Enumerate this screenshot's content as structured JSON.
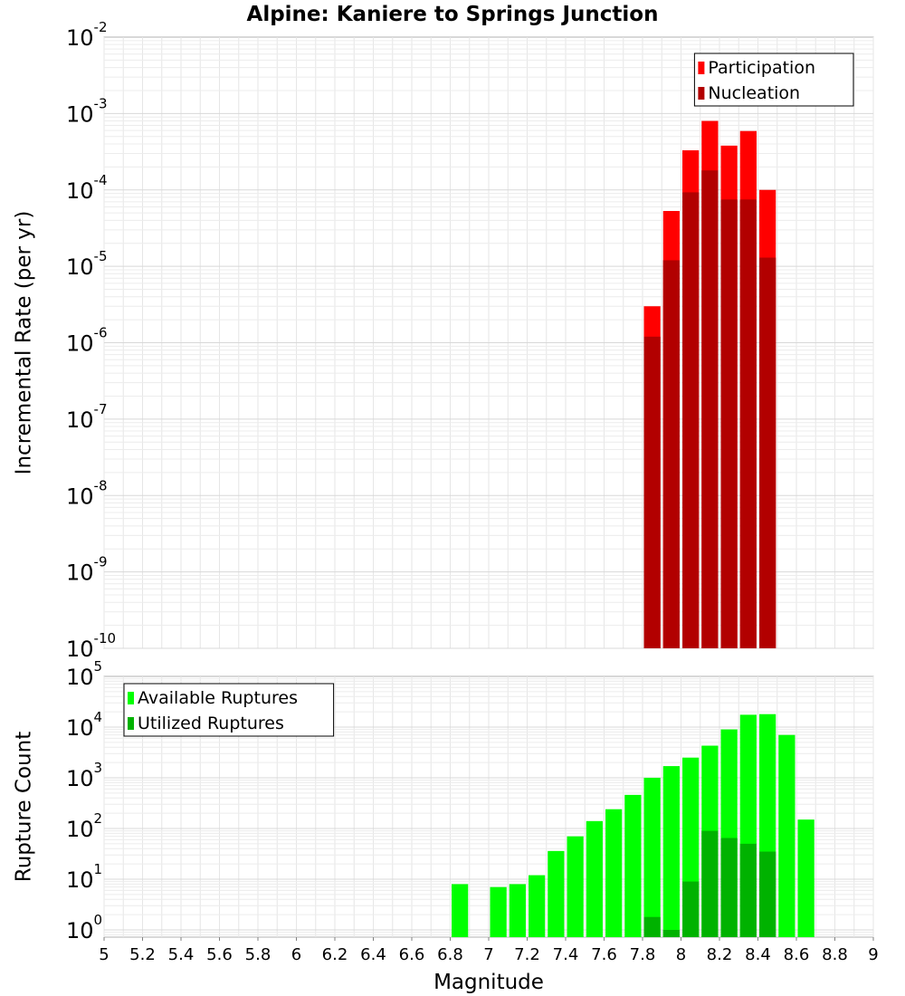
{
  "title": "Alpine: Kaniere to Springs Junction",
  "chart_data": [
    {
      "type": "bar",
      "ylabel": "Incremental Rate (per yr)",
      "yscale": "log",
      "ylim": [
        1e-10,
        0.01
      ],
      "xlim": [
        5,
        9
      ],
      "grid": true,
      "legend_position": "top-right",
      "bin_width": 0.1,
      "series": [
        {
          "name": "Participation",
          "color": "#ff0000",
          "x": [
            7.85,
            7.95,
            8.05,
            8.15,
            8.25,
            8.35,
            8.45
          ],
          "values": [
            3e-06,
            5.3e-05,
            0.00033,
            0.0008,
            0.00038,
            0.00059,
            0.0001
          ]
        },
        {
          "name": "Nucleation",
          "color": "#b20000",
          "x": [
            7.85,
            7.95,
            8.05,
            8.15,
            8.25,
            8.35,
            8.45
          ],
          "values": [
            1.2e-06,
            1.2e-05,
            9.3e-05,
            0.00018,
            7.5e-05,
            7.5e-05,
            1.3e-05
          ]
        }
      ]
    },
    {
      "type": "bar",
      "ylabel": "Rupture Count",
      "xlabel": "Magnitude",
      "yscale": "log",
      "ylim": [
        0.72,
        100000.0
      ],
      "xlim": [
        5,
        9
      ],
      "grid": true,
      "legend_position": "top-left",
      "bin_width": 0.1,
      "xticks": [
        "5",
        "5.2",
        "5.4",
        "5.6",
        "5.8",
        "6",
        "6.2",
        "6.4",
        "6.6",
        "6.8",
        "7",
        "7.2",
        "7.4",
        "7.6",
        "7.8",
        "8",
        "8.2",
        "8.4",
        "8.6",
        "8.8",
        "9"
      ],
      "series": [
        {
          "name": "Available Ruptures",
          "color": "#00ff00",
          "x": [
            6.85,
            7.05,
            7.15,
            7.25,
            7.35,
            7.45,
            7.55,
            7.65,
            7.75,
            7.85,
            7.95,
            8.05,
            8.15,
            8.25,
            8.35,
            8.45,
            8.55,
            8.65
          ],
          "values": [
            8,
            7,
            8,
            12,
            36,
            70,
            140,
            240,
            460,
            1000,
            1700,
            2500,
            4300,
            9000,
            17500,
            18000,
            7000,
            150
          ]
        },
        {
          "name": "Utilized Ruptures",
          "color": "#00b200",
          "x": [
            7.85,
            7.95,
            8.05,
            8.15,
            8.25,
            8.35,
            8.45
          ],
          "values": [
            1.8,
            1.0,
            9,
            90,
            65,
            50,
            35
          ]
        }
      ]
    }
  ]
}
